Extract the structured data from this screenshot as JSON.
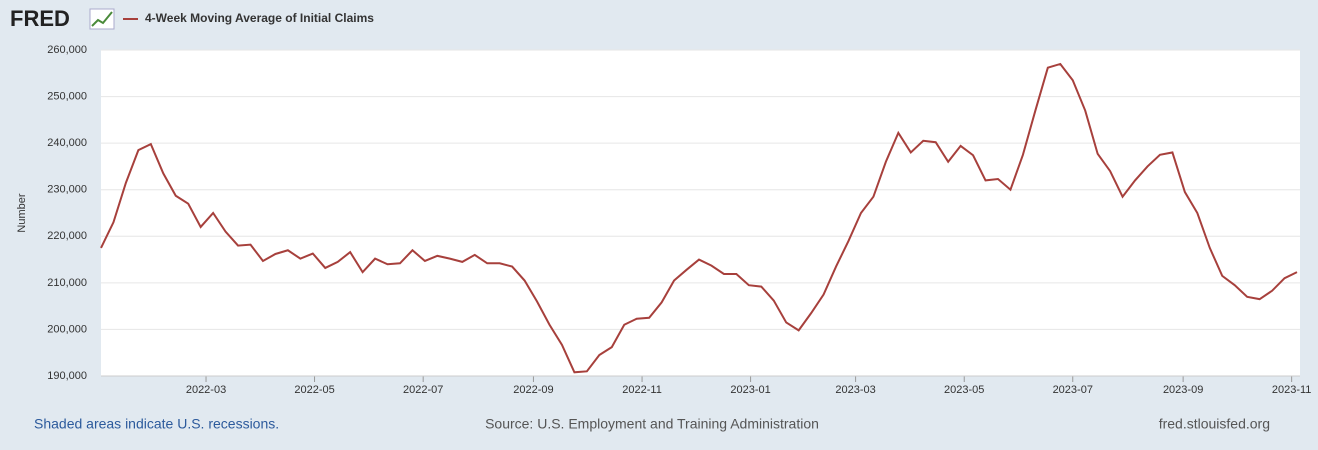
{
  "logo": "FRED",
  "chart_data": {
    "type": "line",
    "series": [
      {
        "name": "4-Week Moving Average of Initial Claims",
        "color": "#a7403c",
        "values": [
          217500,
          223000,
          231500,
          238500,
          239800,
          233500,
          228700,
          227000,
          222000,
          225000,
          221000,
          218000,
          218200,
          214700,
          216200,
          217000,
          215200,
          216300,
          213200,
          214500,
          216600,
          212300,
          215200,
          214000,
          214200,
          217000,
          214700,
          215800,
          215200,
          214500,
          216000,
          214200,
          214200,
          213500,
          210500,
          206000,
          201000,
          196700,
          190800,
          191000,
          194500,
          196200,
          201000,
          202300,
          202500,
          205800,
          210500,
          212800,
          215000,
          213700,
          211900,
          211900,
          209500,
          209200,
          206200,
          201500,
          199800,
          203500,
          207500,
          213500,
          219000,
          225000,
          228500,
          236000,
          242200,
          238000,
          240500,
          240200,
          236000,
          239400,
          237400,
          232000,
          232300,
          230000,
          237500,
          247000,
          256200,
          257000,
          253500,
          247000,
          237700,
          234000,
          228500,
          232000,
          235000,
          237500,
          238000,
          229500,
          225000,
          217500,
          211500,
          209500,
          207000,
          206500,
          208300,
          211000,
          212300
        ]
      }
    ],
    "ylabel": "Number",
    "xlim": [
      0,
      96
    ],
    "xticks": [
      {
        "value": 8.43,
        "label": "2022-03"
      },
      {
        "value": 17.14,
        "label": "2022-05"
      },
      {
        "value": 25.86,
        "label": "2022-07"
      },
      {
        "value": 34.71,
        "label": "2022-09"
      },
      {
        "value": 43.43,
        "label": "2022-11"
      },
      {
        "value": 52.14,
        "label": "2023-01"
      },
      {
        "value": 60.57,
        "label": "2023-03"
      },
      {
        "value": 69.29,
        "label": "2023-05"
      },
      {
        "value": 78,
        "label": "2023-07"
      },
      {
        "value": 86.86,
        "label": "2023-09"
      },
      {
        "value": 95.57,
        "label": "2023-11"
      }
    ],
    "ylim": [
      190000,
      260000
    ],
    "yticks": [
      {
        "value": 190000,
        "label": "190,000"
      },
      {
        "value": 200000,
        "label": "200,000"
      },
      {
        "value": 210000,
        "label": "210,000"
      },
      {
        "value": 220000,
        "label": "220,000"
      },
      {
        "value": 230000,
        "label": "230,000"
      },
      {
        "value": 240000,
        "label": "240,000"
      },
      {
        "value": 250000,
        "label": "250,000"
      },
      {
        "value": 260000,
        "label": "260,000"
      }
    ],
    "grid": true
  },
  "footer": {
    "left": "Shaded areas indicate U.S. recessions.",
    "center": "Source: U.S. Employment and Training Administration",
    "right": "fred.stlouisfed.org"
  }
}
